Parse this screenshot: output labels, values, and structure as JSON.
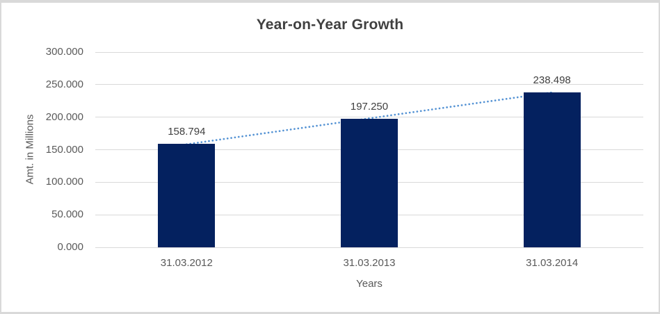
{
  "chart_data": {
    "type": "bar",
    "title": "Year-on-Year Growth",
    "xlabel": "Years",
    "ylabel": "Amt. in Millions",
    "categories": [
      "31.03.2012",
      "31.03.2013",
      "31.03.2014"
    ],
    "values": [
      158.794,
      197.25,
      238.498
    ],
    "data_labels": [
      "158.794",
      "197.250",
      "238.498"
    ],
    "ylim": [
      0,
      300
    ],
    "ytick_step": 50,
    "ytick_labels": [
      "0.000",
      "50.000",
      "100.000",
      "150.000",
      "200.000",
      "250.000",
      "300.000"
    ],
    "grid": true,
    "legend_position": "none",
    "trendline": {
      "type": "linear",
      "style": "dotted",
      "fit_values_at_first_last": [
        158.329,
        238.033
      ]
    },
    "colors": {
      "bar_fill": "#04215f",
      "trendline": "#5593d4",
      "gridline": "#d9d9d9",
      "title_text": "#404040",
      "axis_text": "#595959",
      "data_label_text": "#404040",
      "chart_border": "#d9d9d9",
      "background": "#ffffff"
    }
  }
}
